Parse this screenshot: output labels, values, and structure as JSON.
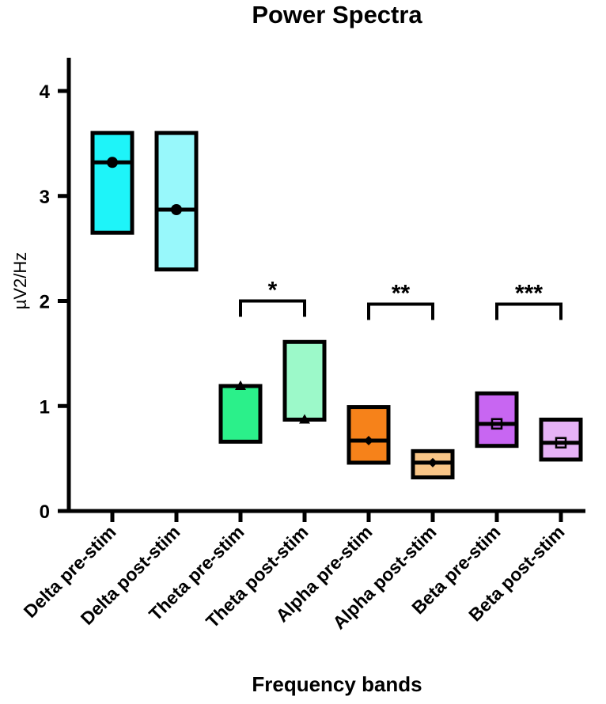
{
  "chart_data": {
    "type": "floating-bar",
    "title": "Power Spectra",
    "xlabel": "Frequency bands",
    "ylabel": "µV2/Hz",
    "ylim": [
      0,
      4
    ],
    "yticks": [
      0,
      1,
      2,
      3,
      4
    ],
    "categories": [
      "Delta pre-stim",
      "Delta post-stim",
      "Theta pre-stim",
      "Theta post-stim",
      "Alpha pre-stim",
      "Alpha post-stim",
      "Beta pre-stim",
      "Beta post-stim"
    ],
    "bars": [
      {
        "low": 2.65,
        "high": 3.6,
        "line": 3.32,
        "marker": "circle",
        "marker_value": 3.32,
        "color": "#1ef4f9"
      },
      {
        "low": 2.3,
        "high": 3.6,
        "line": 2.87,
        "marker": "circle",
        "marker_value": 2.87,
        "color": "#98f8fb"
      },
      {
        "low": 0.66,
        "high": 1.19,
        "line": 1.19,
        "marker": "triangle",
        "marker_value": 1.19,
        "color": "#2bf08a"
      },
      {
        "low": 0.87,
        "high": 1.61,
        "line": 0.87,
        "marker": "triangle",
        "marker_value": 0.87,
        "color": "#9cf9c9"
      },
      {
        "low": 0.46,
        "high": 0.99,
        "line": 0.67,
        "marker": "diamond",
        "marker_value": 0.67,
        "color": "#f6821a"
      },
      {
        "low": 0.32,
        "high": 0.57,
        "line": 0.46,
        "marker": "diamond",
        "marker_value": 0.46,
        "color": "#f8c587"
      },
      {
        "low": 0.62,
        "high": 1.12,
        "line": 0.83,
        "marker": "square",
        "marker_value": 0.83,
        "color": "#c866f2"
      },
      {
        "low": 0.49,
        "high": 0.87,
        "line": 0.65,
        "marker": "square",
        "marker_value": 0.65,
        "color": "#e6b2f6"
      }
    ],
    "significance": [
      {
        "from": 2,
        "to": 3,
        "label": "*",
        "value": 2.0
      },
      {
        "from": 4,
        "to": 5,
        "label": "**",
        "value": 1.97
      },
      {
        "from": 6,
        "to": 7,
        "label": "***",
        "value": 1.97
      }
    ]
  }
}
